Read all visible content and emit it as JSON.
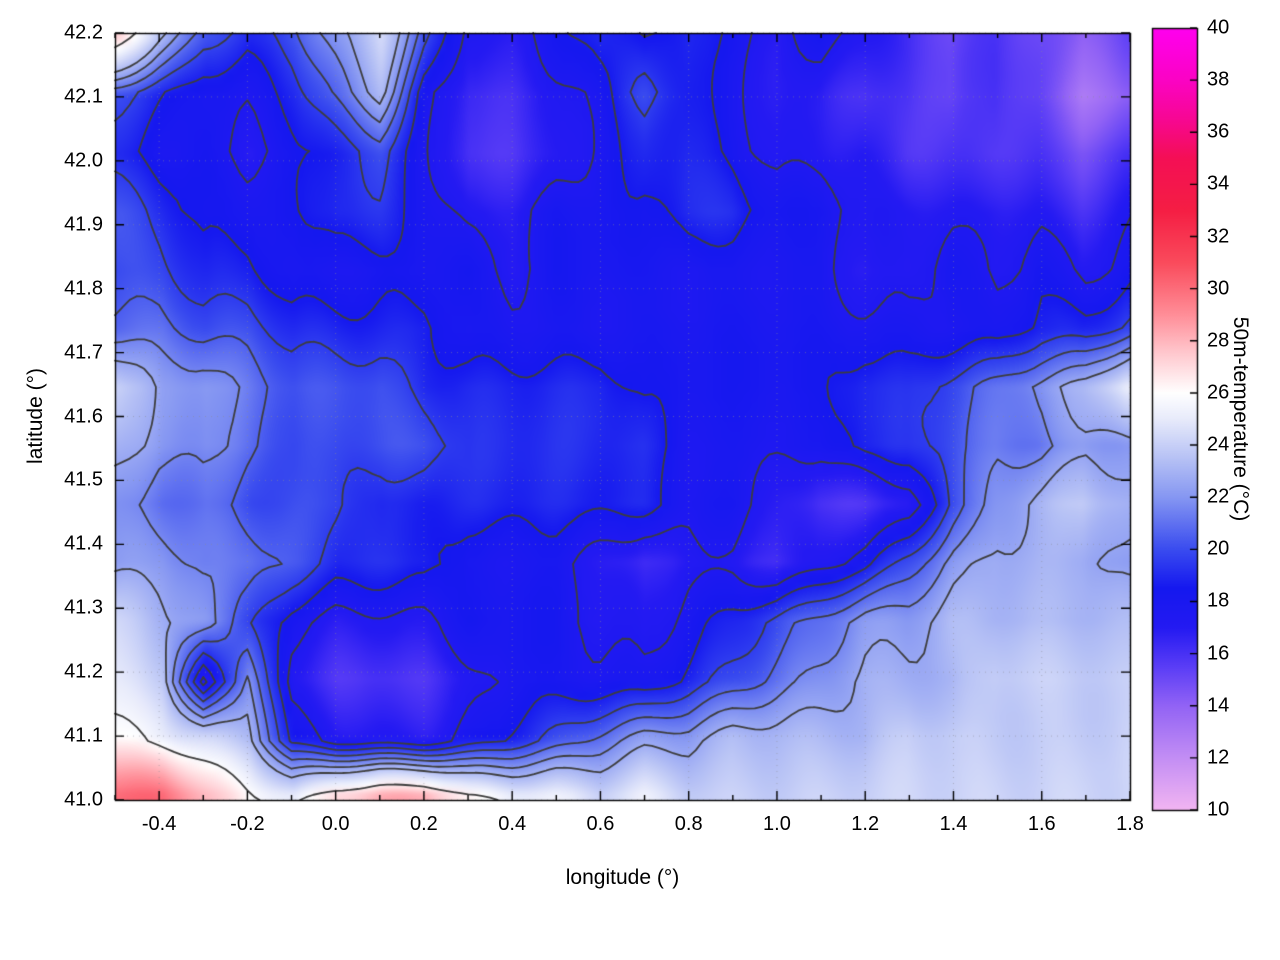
{
  "chart_data": {
    "type": "heatmap",
    "xlabel": "longitude (°)",
    "ylabel": "latitude (°)",
    "colorbar_label": "50m-temperature (°C)",
    "x_range": [
      -0.5,
      1.8
    ],
    "y_range": [
      41.0,
      42.2
    ],
    "colorbar_range": [
      10,
      40
    ],
    "x_tick_values": [
      -0.4,
      -0.2,
      0.0,
      0.2,
      0.4,
      0.6,
      0.8,
      1.0,
      1.2,
      1.4,
      1.6,
      1.8
    ],
    "x_tick_labels": [
      "-0.4",
      "-0.2",
      "0.0",
      "0.2",
      "0.4",
      "0.6",
      "0.8",
      "1.0",
      "1.2",
      "1.4",
      "1.6",
      "1.8"
    ],
    "x_minor_tick_step": 0.1,
    "y_tick_values": [
      41.0,
      41.1,
      41.2,
      41.3,
      41.4,
      41.5,
      41.6,
      41.7,
      41.8,
      41.9,
      42.0,
      42.1,
      42.2
    ],
    "y_tick_labels": [
      "41.0",
      "41.1",
      "41.2",
      "41.3",
      "41.4",
      "41.5",
      "41.6",
      "41.7",
      "41.8",
      "41.9",
      "42.0",
      "42.1",
      "42.2"
    ],
    "colorbar_tick_values": [
      10,
      12,
      14,
      16,
      18,
      20,
      22,
      24,
      26,
      28,
      30,
      32,
      34,
      36,
      38,
      40
    ],
    "colorbar_tick_labels": [
      "10",
      "12",
      "14",
      "16",
      "18",
      "20",
      "22",
      "24",
      "26",
      "28",
      "30",
      "32",
      "34",
      "36",
      "38",
      "40"
    ],
    "grid_shown": true,
    "legend": "none",
    "colors": {
      "contour": "#3d3d3d",
      "axis": "#000000",
      "grid": "#8c8c96",
      "background": "#ffffff"
    },
    "palette_stops": [
      {
        "v": 10.0,
        "c": "#f2b5f2"
      },
      {
        "v": 12.0,
        "c": "#c38ef4"
      },
      {
        "v": 14.0,
        "c": "#9263f5"
      },
      {
        "v": 15.5,
        "c": "#5a3df6"
      },
      {
        "v": 17.0,
        "c": "#241af2"
      },
      {
        "v": 18.5,
        "c": "#1518ef"
      },
      {
        "v": 20.0,
        "c": "#3a4cef"
      },
      {
        "v": 22.0,
        "c": "#8697f2"
      },
      {
        "v": 23.5,
        "c": "#b7c2f5"
      },
      {
        "v": 25.0,
        "c": "#e8ebfb"
      },
      {
        "v": 26.0,
        "c": "#ffffff"
      },
      {
        "v": 27.5,
        "c": "#ffc9cf"
      },
      {
        "v": 29.0,
        "c": "#ff8e98"
      },
      {
        "v": 31.0,
        "c": "#fa4b5c"
      },
      {
        "v": 33.0,
        "c": "#f51e44"
      },
      {
        "v": 35.0,
        "c": "#f40f55"
      },
      {
        "v": 36.5,
        "c": "#f70793"
      },
      {
        "v": 38.0,
        "c": "#fb03c4"
      },
      {
        "v": 40.0,
        "c": "#ff00ef"
      }
    ],
    "contour_levels": [
      17.5,
      18.5,
      19.5,
      20.5,
      21.5,
      22.5,
      25.5
    ],
    "temperature_grid": {
      "nx": 24,
      "ny": 14,
      "order": "rows from north (lat 42.2) to south (lat 41.0), columns from west (lon -0.5) to east (lon 1.8)",
      "units": "°C",
      "values": [
        [
          27,
          23,
          20,
          19,
          20,
          22,
          24,
          20,
          17,
          17,
          18,
          19,
          18,
          19,
          18,
          17,
          18,
          17,
          16,
          15,
          16,
          15,
          14,
          15
        ],
        [
          20,
          19,
          18,
          18,
          19,
          21,
          23,
          18,
          16,
          16,
          17,
          18,
          20,
          19,
          18,
          17,
          17,
          16,
          16,
          15,
          16,
          15,
          13,
          14
        ],
        [
          19,
          18,
          18,
          17,
          18,
          19,
          20,
          18,
          16,
          16,
          17,
          18,
          19,
          19,
          18,
          17,
          17,
          17,
          16,
          16,
          16,
          16,
          15,
          16
        ],
        [
          20,
          19,
          18,
          18,
          18,
          19,
          19,
          18,
          17,
          17,
          18,
          18,
          18,
          19,
          19,
          18,
          18,
          17,
          17,
          17,
          17,
          17,
          16,
          17
        ],
        [
          20,
          20,
          19,
          19,
          18,
          18,
          18,
          18,
          18,
          17,
          18,
          18,
          18,
          18,
          18,
          18,
          18,
          17,
          17,
          18,
          17,
          18,
          17,
          18
        ],
        [
          21,
          21,
          20,
          20,
          19,
          19,
          19,
          19,
          18,
          18,
          18,
          18,
          18,
          18,
          18,
          18,
          18,
          18,
          18,
          18,
          18,
          19,
          19,
          20
        ],
        [
          24,
          22,
          22,
          21,
          20,
          20,
          20,
          19,
          19,
          19,
          19,
          19,
          18,
          18,
          18,
          18,
          18,
          19,
          19,
          20,
          21,
          22,
          23,
          25
        ],
        [
          23,
          22,
          22,
          21,
          20,
          20,
          20,
          20,
          19,
          19,
          19,
          19,
          19,
          18,
          18,
          18,
          18,
          19,
          19,
          20,
          21,
          21,
          22,
          22
        ],
        [
          22,
          21,
          21,
          20,
          20,
          20,
          19,
          19,
          19,
          19,
          19,
          19,
          19,
          18,
          18,
          17,
          16,
          16,
          17,
          20,
          22,
          23,
          24,
          23
        ],
        [
          22,
          22,
          21,
          21,
          20,
          19,
          19,
          19,
          18,
          18,
          18,
          17,
          16,
          17,
          17,
          16,
          17,
          18,
          20,
          22,
          23,
          23,
          23,
          22
        ],
        [
          24,
          23,
          22,
          20,
          18,
          17,
          17,
          17,
          18,
          18,
          18,
          17,
          17,
          18,
          19,
          20,
          21,
          22,
          22,
          23,
          23,
          23,
          23,
          23
        ],
        [
          25,
          24,
          17,
          22,
          17,
          16,
          16,
          16,
          17,
          18,
          18,
          18,
          18,
          19,
          20,
          21,
          22,
          23,
          23,
          23,
          24,
          24,
          24,
          24
        ],
        [
          26,
          25,
          24,
          23,
          18,
          17,
          17,
          17,
          18,
          19,
          20,
          21,
          22,
          22,
          23,
          23,
          23,
          23,
          24,
          24,
          24,
          24,
          24,
          24
        ],
        [
          30,
          30,
          28,
          26,
          25,
          27,
          28,
          28,
          26,
          25,
          25,
          24,
          25,
          24,
          24,
          24,
          24,
          24,
          24,
          24,
          24,
          24,
          24,
          24
        ]
      ]
    }
  }
}
